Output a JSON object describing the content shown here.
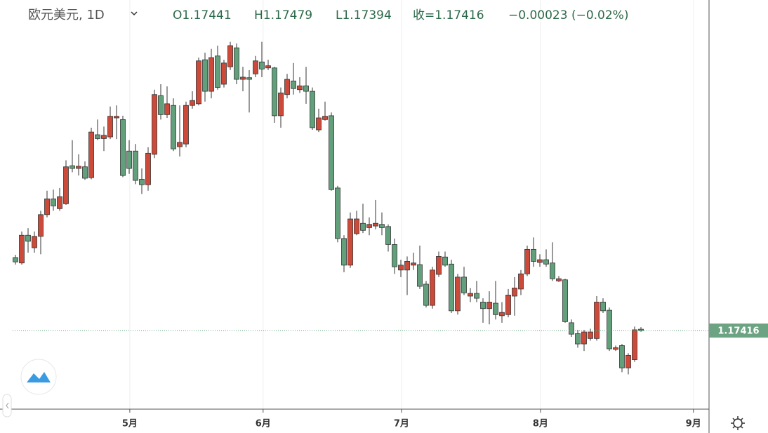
{
  "chart_data": {
    "type": "candlestick",
    "title": "欧元美元, 1D",
    "legend": [
      "O1.17441",
      "H1.17479",
      "L1.17394",
      "收=1.17416",
      "−0.00023 (−0.02%)"
    ],
    "up_color": "#cc4a3a",
    "down_color": "#62a07c",
    "open": [
      1.1876,
      1.1866,
      1.1917,
      1.1894,
      1.1915,
      1.1955,
      1.1984,
      1.1966,
      1.1975,
      1.2045,
      1.204,
      1.2043,
      1.2023,
      1.2102,
      1.2095,
      1.2098,
      1.2133,
      1.213,
      1.2072,
      1.2072,
      1.202,
      1.201,
      1.2066,
      1.2174,
      1.2139,
      1.2156,
      1.208,
      1.2085,
      1.2156,
      1.2159,
      1.224,
      1.2182,
      1.2247,
      1.2195,
      1.2227,
      1.2262,
      1.2204,
      1.2207,
      1.2214,
      1.2236,
      1.2225,
      1.2225,
      1.2137,
      1.2176,
      1.2201,
      1.2185,
      1.2192,
      1.2182,
      1.2111,
      1.213,
      1.2137,
      1.2004,
      1.1911,
      1.1862,
      1.192,
      1.1939,
      1.1931,
      1.1934,
      1.1937,
      1.1933,
      1.19,
      1.1853,
      1.1853,
      1.1862,
      1.1863,
      1.1827,
      1.1788,
      1.1845,
      1.1877,
      1.1864,
      1.1778,
      1.184,
      1.1805,
      1.181,
      1.1794,
      1.1782,
      1.1792,
      1.1769,
      1.1771,
      1.1805,
      1.1818,
      1.1846,
      1.1891,
      1.1867,
      1.1872,
      1.1866,
      1.1833,
      1.1835,
      1.1756,
      1.1736,
      1.1717,
      1.1727,
      1.1727,
      1.1794,
      1.1779,
      1.1707,
      1.1714,
      1.1673,
      1.1688,
      1.17441
    ],
    "high": [
      1.1881,
      1.1924,
      1.193,
      1.1924,
      1.1962,
      1.1999,
      1.2001,
      1.2004,
      1.2055,
      1.2092,
      1.2066,
      1.2053,
      1.2115,
      1.213,
      1.2117,
      1.2154,
      1.2156,
      1.2137,
      1.2092,
      1.2085,
      1.204,
      1.2079,
      1.2185,
      1.2195,
      1.2191,
      1.2169,
      1.2156,
      1.2163,
      1.2182,
      1.2244,
      1.2253,
      1.226,
      1.2266,
      1.224,
      1.2273,
      1.227,
      1.2227,
      1.2221,
      1.2247,
      1.2273,
      1.224,
      1.2227,
      1.2189,
      1.2214,
      1.2234,
      1.2208,
      1.2227,
      1.2189,
      1.215,
      1.2163,
      1.2143,
      1.2008,
      1.1917,
      1.1959,
      1.1962,
      1.1975,
      1.195,
      1.1982,
      1.1959,
      1.1937,
      1.1911,
      1.1872,
      1.1878,
      1.1885,
      1.1898,
      1.1833,
      1.1859,
      1.1887,
      1.1887,
      1.1872,
      1.1846,
      1.1859,
      1.182,
      1.1833,
      1.1801,
      1.1814,
      1.1833,
      1.1794,
      1.1818,
      1.184,
      1.1853,
      1.1898,
      1.1913,
      1.1882,
      1.1891,
      1.1904,
      1.1842,
      1.1837,
      1.1762,
      1.1743,
      1.1743,
      1.1745,
      1.1805,
      1.1801,
      1.1784,
      1.1714,
      1.1717,
      1.17,
      1.1749,
      1.17479
    ],
    "low": [
      1.1863,
      1.1863,
      1.1885,
      1.1885,
      1.1882,
      1.195,
      1.1962,
      1.1962,
      1.1973,
      1.2033,
      1.2027,
      1.2019,
      1.202,
      1.2092,
      1.2072,
      1.2094,
      1.2094,
      1.2024,
      1.203,
      1.2011,
      1.1993,
      1.1999,
      1.2059,
      1.213,
      1.2133,
      1.2072,
      1.2062,
      1.2079,
      1.215,
      1.2156,
      1.2163,
      1.2169,
      1.2185,
      1.2189,
      1.2221,
      1.2195,
      1.2182,
      1.2143,
      1.2208,
      1.2208,
      1.2221,
      1.2124,
      1.2115,
      1.2169,
      1.2176,
      1.2179,
      1.2159,
      1.2111,
      1.2107,
      1.2128,
      1.1999,
      1.1904,
      1.1849,
      1.1857,
      1.1917,
      1.1921,
      1.1917,
      1.1928,
      1.1917,
      1.1887,
      1.1846,
      1.184,
      1.1807,
      1.1853,
      1.1818,
      1.1784,
      1.1782,
      1.184,
      1.1859,
      1.1774,
      1.1771,
      1.1807,
      1.1794,
      1.1794,
      1.1756,
      1.1753,
      1.1762,
      1.1756,
      1.1766,
      1.1769,
      1.1807,
      1.1842,
      1.1859,
      1.1859,
      1.1859,
      1.1833,
      1.1831,
      1.1756,
      1.173,
      1.171,
      1.1704,
      1.1723,
      1.1723,
      1.1774,
      1.1704,
      1.1704,
      1.1665,
      1.1661,
      1.1684,
      1.17394
    ],
    "close": [
      1.1868,
      1.1917,
      1.1906,
      1.1915,
      1.1955,
      1.1984,
      1.1971,
      1.1988,
      1.2043,
      1.204,
      1.2044,
      1.2022,
      1.2107,
      1.2095,
      1.2101,
      1.2136,
      1.2136,
      1.2027,
      1.204,
      1.2018,
      1.201,
      1.2068,
      1.2176,
      1.2139,
      1.2159,
      1.2076,
      1.2088,
      1.2156,
      1.2165,
      1.2238,
      1.2182,
      1.2244,
      1.2189,
      1.2234,
      1.2266,
      1.2204,
      1.2208,
      1.2204,
      1.2238,
      1.2223,
      1.2229,
      1.2137,
      1.2179,
      1.2204,
      1.2187,
      1.2192,
      1.2182,
      1.2115,
      1.2133,
      1.2136,
      1.2001,
      1.1911,
      1.1862,
      1.1947,
      1.1947,
      1.1926,
      1.1937,
      1.1939,
      1.1931,
      1.19,
      1.1859,
      1.1862,
      1.1869,
      1.1866,
      1.1823,
      1.1788,
      1.1853,
      1.1878,
      1.1862,
      1.1778,
      1.184,
      1.1811,
      1.181,
      1.1801,
      1.1782,
      1.1794,
      1.1771,
      1.1775,
      1.1807,
      1.182,
      1.1846,
      1.1891,
      1.1869,
      1.1872,
      1.1864,
      1.1837,
      1.1837,
      1.1758,
      1.1735,
      1.1717,
      1.1739,
      1.1739,
      1.1794,
      1.1778,
      1.1708,
      1.171,
      1.1673,
      1.1696,
      1.1743,
      1.17416
    ],
    "ylim": [
      1.235,
      1.1597
    ],
    "xlim": [
      -0.4444,
      109.7778
    ],
    "xticks": [
      {
        "value": 18.1,
        "label": "5月"
      },
      {
        "value": 39.2,
        "label": "6月"
      },
      {
        "value": 61.1,
        "label": "7月"
      },
      {
        "value": 83.1,
        "label": "8月"
      },
      {
        "value": 107.3,
        "label": "9月"
      }
    ],
    "price_line": 1.17416,
    "grid": true
  }
}
